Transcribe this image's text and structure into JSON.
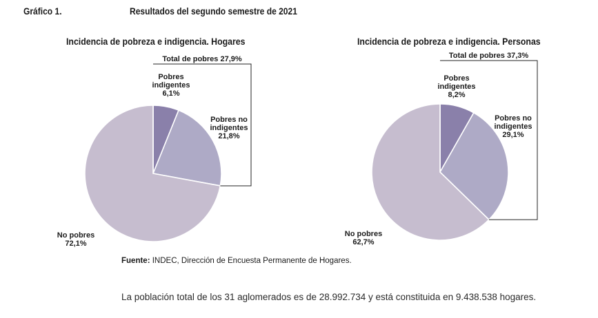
{
  "figure": {
    "number": "Gráfico 1.",
    "title": "Resultados del segundo semestre de 2021"
  },
  "chart_data": [
    {
      "type": "pie",
      "title": "Incidencia de pobreza e indigencia. Hogares",
      "bracket_label": "Total de pobres 27,9%",
      "slices": [
        {
          "label_lines": [
            "Pobres",
            "indigentes"
          ],
          "value_text": "6,1%",
          "value": 6.1,
          "color": "#8a80aa"
        },
        {
          "label_lines": [
            "Pobres no",
            "indigentes"
          ],
          "value_text": "21,8%",
          "value": 21.8,
          "color": "#aeaac6"
        },
        {
          "label_lines": [
            "No pobres"
          ],
          "value_text": "72,1%",
          "value": 72.1,
          "color": "#c6bdcf"
        }
      ]
    },
    {
      "type": "pie",
      "title": "Incidencia de pobreza e indigencia. Personas",
      "bracket_label": "Total de pobres 37,3%",
      "slices": [
        {
          "label_lines": [
            "Pobres",
            "indigentes"
          ],
          "value_text": "8,2%",
          "value": 8.2,
          "color": "#8a80aa"
        },
        {
          "label_lines": [
            "Pobres no",
            "indigentes"
          ],
          "value_text": "29,1%",
          "value": 29.1,
          "color": "#aeaac6"
        },
        {
          "label_lines": [
            "No pobres"
          ],
          "value_text": "62,7%",
          "value": 62.7,
          "color": "#c6bdcf"
        }
      ]
    }
  ],
  "source": {
    "prefix": "Fuente:",
    "text": " INDEC, Dirección de Encuesta Permanente de Hogares."
  },
  "note": "La población total de los 31 aglomerados es de 28.992.734 y está constituida en 9.438.538 hogares."
}
